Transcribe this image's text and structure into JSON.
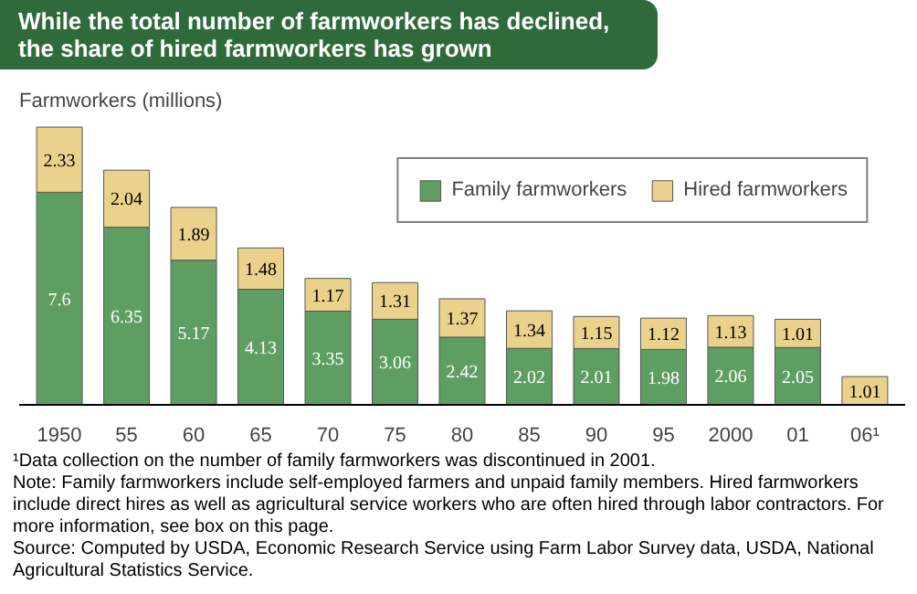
{
  "chart_data": {
    "type": "bar",
    "stacked": true,
    "data_labels": true,
    "legend": "top right",
    "grid": false,
    "title": "While the total number of farmworkers has declined, the share of hired farmworkers has grown",
    "ylabel": "Farmworkers (millions)",
    "categories": [
      "1950",
      "55",
      "60",
      "65",
      "70",
      "75",
      "80",
      "85",
      "90",
      "95",
      "2000",
      "01",
      "06¹"
    ],
    "series": [
      {
        "name": "Family farmworkers",
        "color": "#5e9e62",
        "values": [
          7.6,
          6.35,
          5.17,
          4.13,
          3.35,
          3.06,
          2.42,
          2.02,
          2.01,
          1.98,
          2.06,
          2.05,
          null
        ]
      },
      {
        "name": "Hired farmworkers",
        "color": "#ebd28c",
        "values": [
          2.33,
          2.04,
          1.89,
          1.48,
          1.17,
          1.31,
          1.37,
          1.34,
          1.15,
          1.12,
          1.13,
          1.01,
          1.01
        ]
      }
    ],
    "annotations": [
      "¹Data collection on the number of family farmworkers was discontinued in 2001.",
      "Note:  Family farmworkers include self-employed farmers and unpaid family members. Hired farmworkers include direct hires as well as agricultural service workers who are often hired through labor contractors.  For more information, see box on this page.",
      "Source:  Computed by USDA, Economic Research Service using Farm Labor Survey data, USDA, National Agricultural Statistics Service."
    ]
  }
}
